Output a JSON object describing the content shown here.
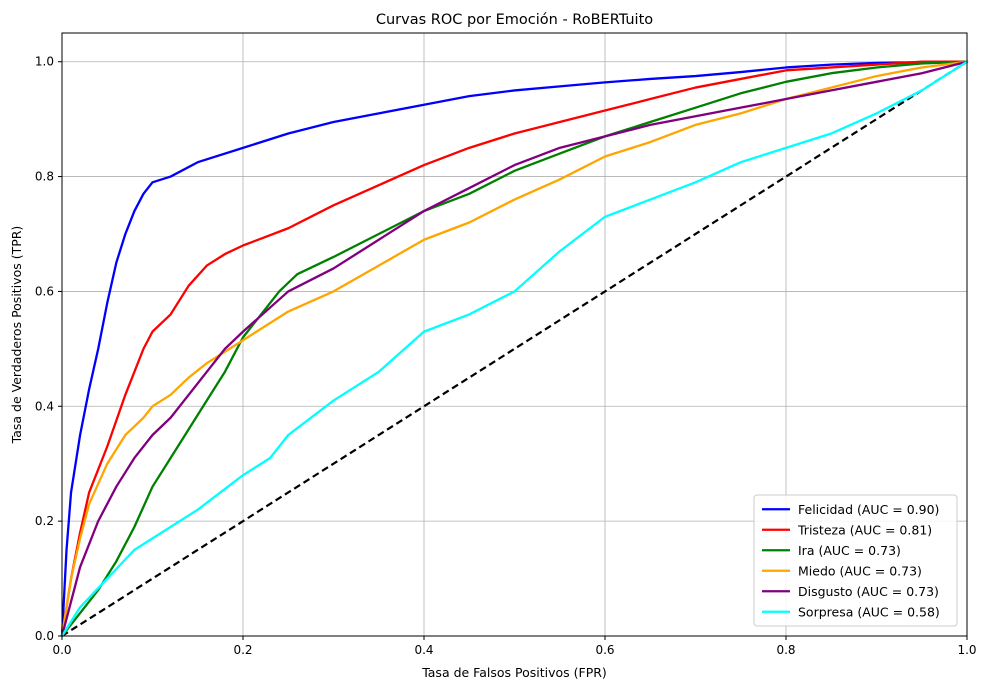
{
  "chart_data": {
    "type": "line",
    "title": "Curvas ROC por Emoción - RoBERTuito",
    "xlabel": "Tasa de Falsos Positivos (FPR)",
    "ylabel": "Tasa de Verdaderos Positivos (TPR)",
    "xlim": [
      0.0,
      1.0
    ],
    "ylim": [
      0.0,
      1.05
    ],
    "xticks": [
      "0.0",
      "0.2",
      "0.4",
      "0.6",
      "0.8",
      "1.0"
    ],
    "yticks": [
      "0.0",
      "0.2",
      "0.4",
      "0.6",
      "0.8",
      "1.0"
    ],
    "grid": true,
    "legend_position": "lower-right",
    "diagonal": {
      "x": [
        0.0,
        1.0
      ],
      "y": [
        0.0,
        1.0
      ],
      "color": "#000000",
      "style": "dashed"
    },
    "series": [
      {
        "name": "Felicidad (AUC = 0.90)",
        "color": "#0000ff",
        "x": [
          0,
          0.005,
          0.01,
          0.02,
          0.03,
          0.04,
          0.05,
          0.06,
          0.07,
          0.08,
          0.09,
          0.1,
          0.12,
          0.15,
          0.2,
          0.25,
          0.3,
          0.35,
          0.4,
          0.45,
          0.5,
          0.55,
          0.6,
          0.65,
          0.7,
          0.75,
          0.8,
          0.85,
          0.9,
          0.95,
          1.0
        ],
        "y": [
          0,
          0.15,
          0.25,
          0.35,
          0.43,
          0.5,
          0.58,
          0.65,
          0.7,
          0.74,
          0.77,
          0.79,
          0.8,
          0.825,
          0.85,
          0.875,
          0.895,
          0.91,
          0.925,
          0.94,
          0.95,
          0.957,
          0.964,
          0.97,
          0.975,
          0.982,
          0.99,
          0.995,
          0.998,
          0.999,
          1.0
        ]
      },
      {
        "name": "Tristeza (AUC = 0.81)",
        "color": "#ff0000",
        "x": [
          0,
          0.01,
          0.02,
          0.03,
          0.05,
          0.07,
          0.09,
          0.1,
          0.12,
          0.14,
          0.16,
          0.18,
          0.2,
          0.25,
          0.3,
          0.35,
          0.4,
          0.45,
          0.5,
          0.55,
          0.6,
          0.65,
          0.7,
          0.75,
          0.8,
          0.85,
          0.9,
          0.95,
          1.0
        ],
        "y": [
          0,
          0.1,
          0.18,
          0.25,
          0.33,
          0.42,
          0.5,
          0.53,
          0.56,
          0.61,
          0.645,
          0.665,
          0.68,
          0.71,
          0.75,
          0.785,
          0.82,
          0.85,
          0.875,
          0.895,
          0.915,
          0.935,
          0.955,
          0.97,
          0.985,
          0.99,
          0.995,
          1.0,
          1.0
        ]
      },
      {
        "name": "Ira (AUC = 0.73)",
        "color": "#008000",
        "x": [
          0,
          0.02,
          0.04,
          0.06,
          0.08,
          0.1,
          0.12,
          0.14,
          0.16,
          0.18,
          0.2,
          0.22,
          0.24,
          0.26,
          0.3,
          0.35,
          0.4,
          0.45,
          0.5,
          0.55,
          0.6,
          0.65,
          0.7,
          0.75,
          0.8,
          0.85,
          0.9,
          0.95,
          1.0
        ],
        "y": [
          0,
          0.04,
          0.08,
          0.13,
          0.19,
          0.26,
          0.31,
          0.36,
          0.41,
          0.46,
          0.52,
          0.56,
          0.6,
          0.63,
          0.66,
          0.7,
          0.74,
          0.77,
          0.81,
          0.84,
          0.87,
          0.895,
          0.92,
          0.945,
          0.965,
          0.98,
          0.99,
          0.997,
          1.0
        ]
      },
      {
        "name": "Miedo (AUC = 0.73)",
        "color": "#ffa500",
        "x": [
          0,
          0.01,
          0.02,
          0.03,
          0.05,
          0.07,
          0.09,
          0.1,
          0.12,
          0.14,
          0.16,
          0.18,
          0.2,
          0.25,
          0.3,
          0.35,
          0.4,
          0.45,
          0.5,
          0.55,
          0.6,
          0.65,
          0.7,
          0.75,
          0.8,
          0.85,
          0.9,
          0.95,
          1.0
        ],
        "y": [
          0,
          0.1,
          0.17,
          0.23,
          0.3,
          0.35,
          0.38,
          0.4,
          0.42,
          0.45,
          0.475,
          0.495,
          0.515,
          0.565,
          0.6,
          0.645,
          0.69,
          0.72,
          0.76,
          0.795,
          0.835,
          0.86,
          0.89,
          0.91,
          0.935,
          0.955,
          0.975,
          0.99,
          1.0
        ]
      },
      {
        "name": "Disgusto (AUC = 0.73)",
        "color": "#800080",
        "x": [
          0,
          0.01,
          0.02,
          0.04,
          0.06,
          0.08,
          0.1,
          0.12,
          0.14,
          0.16,
          0.18,
          0.2,
          0.25,
          0.3,
          0.35,
          0.4,
          0.45,
          0.5,
          0.55,
          0.6,
          0.65,
          0.7,
          0.75,
          0.8,
          0.85,
          0.9,
          0.95,
          1.0
        ],
        "y": [
          0,
          0.06,
          0.12,
          0.2,
          0.26,
          0.31,
          0.35,
          0.38,
          0.42,
          0.46,
          0.5,
          0.53,
          0.6,
          0.64,
          0.69,
          0.74,
          0.78,
          0.82,
          0.85,
          0.87,
          0.89,
          0.905,
          0.92,
          0.935,
          0.95,
          0.965,
          0.98,
          1.0
        ]
      },
      {
        "name": "Sorpresa (AUC = 0.58)",
        "color": "#00ffff",
        "x": [
          0,
          0.02,
          0.05,
          0.08,
          0.1,
          0.15,
          0.2,
          0.23,
          0.25,
          0.3,
          0.35,
          0.4,
          0.45,
          0.5,
          0.55,
          0.6,
          0.65,
          0.7,
          0.75,
          0.8,
          0.85,
          0.9,
          0.95,
          1.0
        ],
        "y": [
          0,
          0.05,
          0.1,
          0.15,
          0.17,
          0.22,
          0.28,
          0.31,
          0.35,
          0.41,
          0.46,
          0.53,
          0.56,
          0.6,
          0.67,
          0.73,
          0.76,
          0.79,
          0.825,
          0.85,
          0.875,
          0.91,
          0.95,
          1.0
        ]
      }
    ]
  }
}
